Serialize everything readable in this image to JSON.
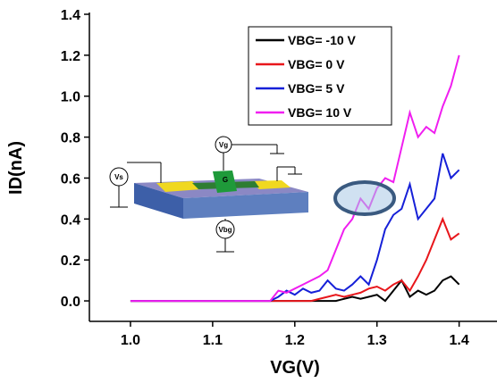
{
  "chart_data": {
    "type": "line",
    "x_label": "VG(V)",
    "y_label": "ID(nA)",
    "x": [
      1.0,
      1.01,
      1.02,
      1.03,
      1.04,
      1.05,
      1.06,
      1.07,
      1.08,
      1.09,
      1.1,
      1.11,
      1.12,
      1.13,
      1.14,
      1.15,
      1.16,
      1.17,
      1.18,
      1.19,
      1.2,
      1.21,
      1.22,
      1.23,
      1.24,
      1.25,
      1.26,
      1.27,
      1.28,
      1.29,
      1.3,
      1.31,
      1.32,
      1.33,
      1.34,
      1.35,
      1.36,
      1.37,
      1.38,
      1.39,
      1.4
    ],
    "series": [
      {
        "name": "VBG= -10 V",
        "color": "#000000",
        "values": [
          0,
          0,
          0,
          0,
          0,
          0,
          0,
          0,
          0,
          0,
          0,
          0,
          0,
          0,
          0,
          0,
          0,
          0,
          0,
          0,
          0,
          0,
          0,
          0,
          0,
          0,
          0.01,
          0.02,
          0.01,
          0.02,
          0.03,
          0,
          0.05,
          0.1,
          0.02,
          0.05,
          0.03,
          0.05,
          0.1,
          0.12,
          0.08
        ]
      },
      {
        "name": "VBG= 0 V",
        "color": "#e8161b",
        "values": [
          0,
          0,
          0,
          0,
          0,
          0,
          0,
          0,
          0,
          0,
          0,
          0,
          0,
          0,
          0,
          0,
          0,
          0,
          0,
          0,
          0,
          0,
          0,
          0.01,
          0.02,
          0.03,
          0.02,
          0.03,
          0.04,
          0.06,
          0.07,
          0.05,
          0.08,
          0.1,
          0.05,
          0.12,
          0.2,
          0.3,
          0.4,
          0.3,
          0.33
        ]
      },
      {
        "name": "VBG= 5 V",
        "color": "#1620d8",
        "values": [
          0,
          0,
          0,
          0,
          0,
          0,
          0,
          0,
          0,
          0,
          0,
          0,
          0,
          0,
          0,
          0,
          0,
          0,
          0.02,
          0.05,
          0.03,
          0.06,
          0.04,
          0.05,
          0.1,
          0.06,
          0.05,
          0.08,
          0.12,
          0.08,
          0.2,
          0.35,
          0.42,
          0.45,
          0.57,
          0.4,
          0.45,
          0.5,
          0.72,
          0.6,
          0.64
        ]
      },
      {
        "name": "VBG= 10 V",
        "color": "#f01ef0",
        "values": [
          0,
          0,
          0,
          0,
          0,
          0,
          0,
          0,
          0,
          0,
          0,
          0,
          0,
          0,
          0,
          0,
          0,
          0,
          0.05,
          0.04,
          0.06,
          0.08,
          0.1,
          0.12,
          0.15,
          0.25,
          0.35,
          0.4,
          0.5,
          0.45,
          0.55,
          0.6,
          0.58,
          0.75,
          0.92,
          0.8,
          0.85,
          0.82,
          0.95,
          1.05,
          1.2
        ]
      }
    ],
    "xlim": [
      0.95,
      1.445
    ],
    "xticks": [
      {
        "value": 1.0,
        "label": "1.0"
      },
      1.1,
      1.2,
      1.3,
      1.4
    ],
    "ylim": [
      -0.1,
      1.4
    ],
    "yticks": [
      {
        "value": 0,
        "label": "0.0"
      },
      0.2,
      0.4,
      0.6,
      0.8,
      {
        "value": 1,
        "label": "1.0"
      },
      1.2,
      1.4
    ],
    "inset_labels": {
      "gate": "Vg",
      "source": "Vs",
      "back_gate": "Vbg",
      "g_pad": "G"
    }
  }
}
